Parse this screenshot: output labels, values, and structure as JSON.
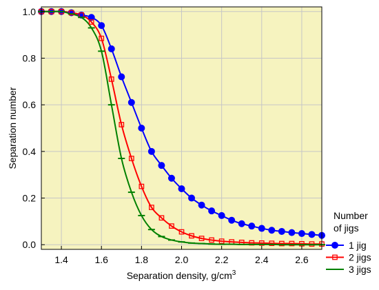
{
  "chart_data": {
    "type": "line",
    "title": "",
    "xlabel": "Separation density,  g/cm",
    "xlabel_superscript": "3",
    "ylabel": "Separation number",
    "xlim": [
      1.3,
      2.7
    ],
    "ylim": [
      -0.02,
      1.02
    ],
    "xticks": [
      "1.4",
      "1.6",
      "1.8",
      "2.0",
      "2.2",
      "2.4",
      "2.6"
    ],
    "yticks": [
      "0.0",
      "0.2",
      "0.4",
      "0.6",
      "0.8",
      "1.0"
    ],
    "grid": true,
    "plot_background": "#f6f3bf",
    "legend": {
      "title_lines": [
        "Number",
        "of jigs"
      ],
      "placement": "right-bottom"
    },
    "series": [
      {
        "name": "1 jig",
        "color": "#0000ff",
        "marker": "circle-filled",
        "x": [
          1.3,
          1.35,
          1.4,
          1.45,
          1.5,
          1.55,
          1.6,
          1.65,
          1.7,
          1.75,
          1.8,
          1.85,
          1.9,
          1.95,
          2.0,
          2.05,
          2.1,
          2.15,
          2.2,
          2.25,
          2.3,
          2.35,
          2.4,
          2.45,
          2.5,
          2.55,
          2.6,
          2.65,
          2.7
        ],
        "values": [
          1.0,
          1.0,
          1.0,
          0.995,
          0.985,
          0.975,
          0.94,
          0.84,
          0.72,
          0.61,
          0.5,
          0.4,
          0.34,
          0.285,
          0.24,
          0.2,
          0.17,
          0.145,
          0.125,
          0.105,
          0.09,
          0.08,
          0.07,
          0.062,
          0.057,
          0.052,
          0.048,
          0.044,
          0.04
        ]
      },
      {
        "name": "2 jigs",
        "color": "#ff0000",
        "marker": "square-open",
        "x": [
          1.3,
          1.35,
          1.4,
          1.45,
          1.5,
          1.55,
          1.6,
          1.65,
          1.7,
          1.75,
          1.8,
          1.85,
          1.9,
          1.95,
          2.0,
          2.05,
          2.1,
          2.15,
          2.2,
          2.25,
          2.3,
          2.35,
          2.4,
          2.45,
          2.5,
          2.55,
          2.6,
          2.65,
          2.7
        ],
        "values": [
          1.0,
          1.0,
          1.0,
          0.995,
          0.985,
          0.955,
          0.885,
          0.71,
          0.515,
          0.37,
          0.25,
          0.16,
          0.115,
          0.08,
          0.055,
          0.038,
          0.027,
          0.02,
          0.015,
          0.012,
          0.01,
          0.008,
          0.007,
          0.006,
          0.005,
          0.005,
          0.004,
          0.003,
          0.003
        ]
      },
      {
        "name": "3 jigs",
        "color": "#008000",
        "marker": "dash",
        "x": [
          1.3,
          1.35,
          1.4,
          1.45,
          1.5,
          1.55,
          1.6,
          1.65,
          1.7,
          1.75,
          1.8,
          1.85,
          1.9,
          1.95,
          2.0,
          2.05,
          2.1,
          2.15,
          2.2,
          2.25,
          2.3,
          2.35,
          2.4,
          2.45,
          2.5,
          2.55,
          2.6,
          2.65,
          2.7
        ],
        "values": [
          1.0,
          1.0,
          1.0,
          0.99,
          0.975,
          0.93,
          0.83,
          0.6,
          0.37,
          0.225,
          0.125,
          0.065,
          0.035,
          0.02,
          0.012,
          0.007,
          0.005,
          0.003,
          0.002,
          0.002,
          0.001,
          0.001,
          0.001,
          0.001,
          0.0,
          0.0,
          0.0,
          0.0,
          0.0
        ]
      }
    ]
  }
}
